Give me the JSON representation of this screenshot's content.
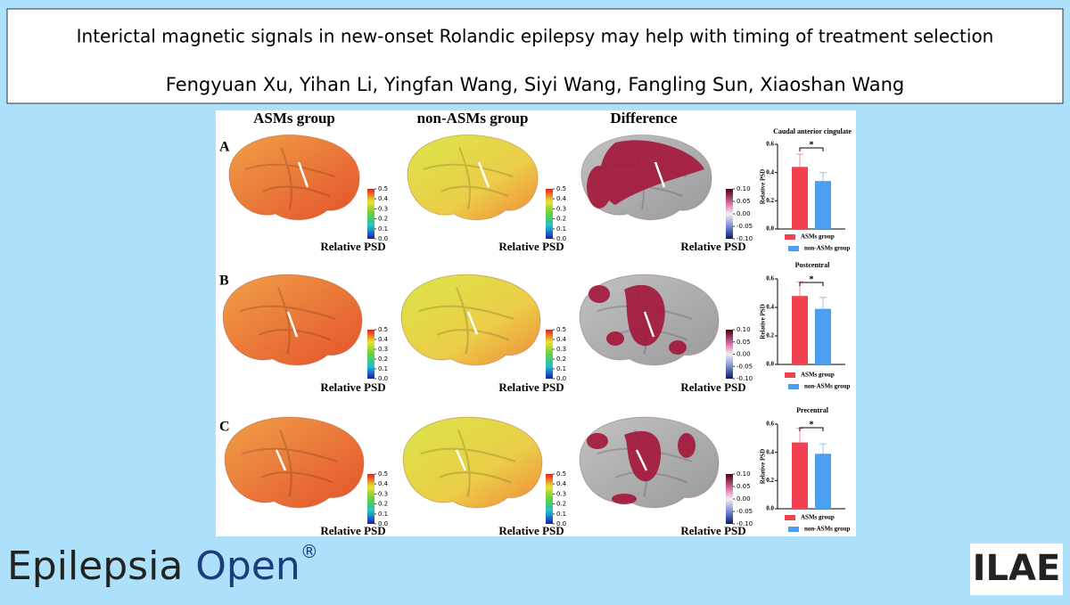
{
  "header": {
    "title": "Interictal magnetic signals in new-onset Rolandic epilepsy may help with timing of treatment selection",
    "authors": "Fengyuan Xu,  Yihan Li,  Yingfan Wang,  Siyi Wang,  Fangling Sun,  Xiaoshan Wang"
  },
  "figure": {
    "columns": [
      "ASMs group",
      "non-ASMs group",
      "Difference"
    ],
    "rows": [
      "A",
      "B",
      "C"
    ],
    "colorbar_label": "Relative PSD",
    "psd_ticks": [
      {
        "value": 0,
        "label": "0.0"
      },
      {
        "value": 0.1,
        "label": "0.1"
      },
      {
        "value": 0.2,
        "label": "0.2"
      },
      {
        "value": 0.3,
        "label": "0.3"
      },
      {
        "value": 0.4,
        "label": "0.4"
      },
      {
        "value": 0.5,
        "label": "0.5"
      }
    ],
    "diff_ticks": [
      {
        "value": -0.1,
        "label": "-0.10"
      },
      {
        "value": -0.05,
        "label": "-0.05"
      },
      {
        "value": 0,
        "label": "0.00"
      },
      {
        "value": 0.05,
        "label": "0.05"
      },
      {
        "value": 0.1,
        "label": "0.10"
      }
    ],
    "charts": [
      {
        "type": "bar",
        "title": "Caudal anterior cingulate",
        "ylabel": "Relative PSD",
        "significance": "*",
        "series": [
          {
            "name": "ASMs group",
            "color": "#f24150",
            "values": [
              0.44
            ],
            "errors": [
              0.09
            ]
          },
          {
            "name": "non-ASMs group",
            "color": "#4a9ff0",
            "values": [
              0.34
            ],
            "errors": [
              0.06
            ]
          }
        ],
        "ylim": [
          0,
          0.6
        ],
        "yticks": [
          {
            "value": 0,
            "label": "0.0"
          },
          0.2,
          0.4,
          0.6
        ]
      },
      {
        "type": "bar",
        "title": "Postcentral",
        "ylabel": "Relative PSD",
        "significance": "*",
        "series": [
          {
            "name": "ASMs group",
            "color": "#f24150",
            "values": [
              0.48
            ],
            "errors": [
              0.1
            ]
          },
          {
            "name": "non-ASMs group",
            "color": "#4a9ff0",
            "values": [
              0.39
            ],
            "errors": [
              0.08
            ]
          }
        ],
        "ylim": [
          0,
          0.6
        ],
        "yticks": [
          {
            "value": 0,
            "label": "0.0"
          },
          0.2,
          0.4,
          0.6
        ]
      },
      {
        "type": "bar",
        "title": "Precentral",
        "ylabel": "Relative PSD",
        "significance": "*",
        "series": [
          {
            "name": "ASMs group",
            "color": "#f24150",
            "values": [
              0.47
            ],
            "errors": [
              0.1
            ]
          },
          {
            "name": "non-ASMs group",
            "color": "#4a9ff0",
            "values": [
              0.39
            ],
            "errors": [
              0.07
            ]
          }
        ],
        "ylim": [
          0,
          0.6
        ],
        "yticks": [
          {
            "value": 0,
            "label": "0.0"
          },
          0.2,
          0.4,
          0.6
        ]
      }
    ]
  },
  "footer": {
    "journal": "Epilepsia",
    "journal_2": "Open",
    "registered": "®",
    "logo": "ILAE"
  }
}
